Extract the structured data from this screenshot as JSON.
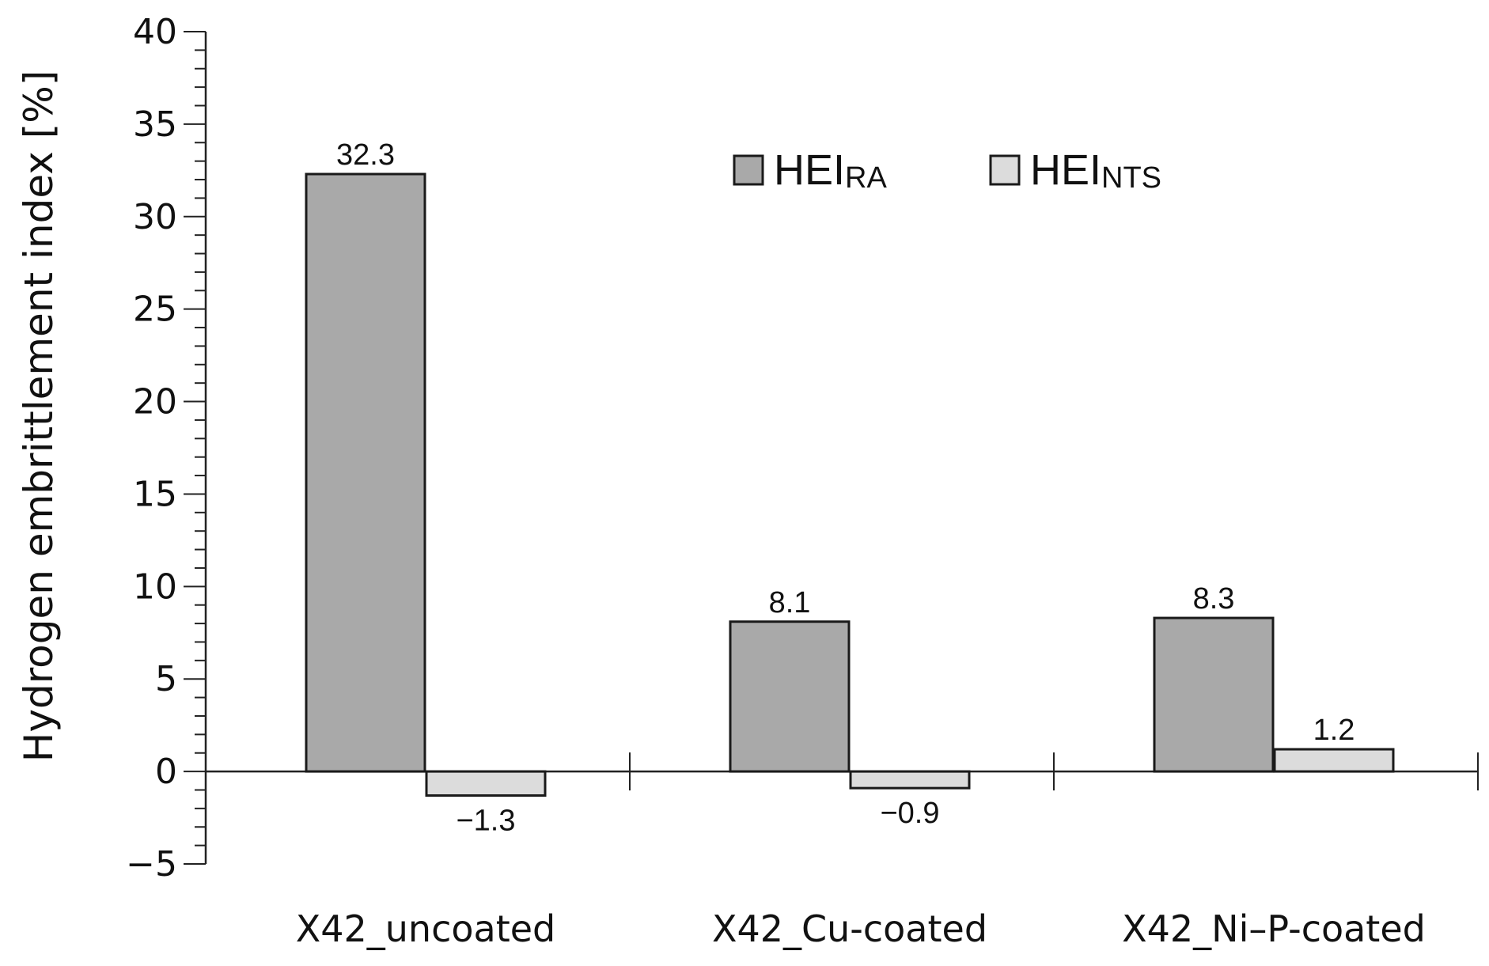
{
  "chart_data": {
    "type": "bar",
    "title": "",
    "xlabel": "",
    "ylabel": "Hydrogen embrittlement index [%]",
    "ylim": [
      -5,
      40
    ],
    "yticks": [
      -5,
      0,
      5,
      10,
      15,
      20,
      25,
      30,
      35,
      40
    ],
    "categories": [
      "X42_uncoated",
      "X42_Cu-coated",
      "X42_Ni–P-coated"
    ],
    "series": [
      {
        "name": "HEI",
        "subscript": "RA",
        "color": "#a9a9a9",
        "values": [
          32.3,
          8.1,
          8.3
        ],
        "labels": [
          "32.3",
          "8.1",
          "8.3"
        ]
      },
      {
        "name": "HEI",
        "subscript": "NTS",
        "color": "#dcdcdc",
        "values": [
          -1.3,
          -0.9,
          1.2
        ],
        "labels": [
          "−1.3",
          "−0.9",
          "1.2"
        ]
      }
    ],
    "legend_position": "top-right",
    "grid": false
  }
}
